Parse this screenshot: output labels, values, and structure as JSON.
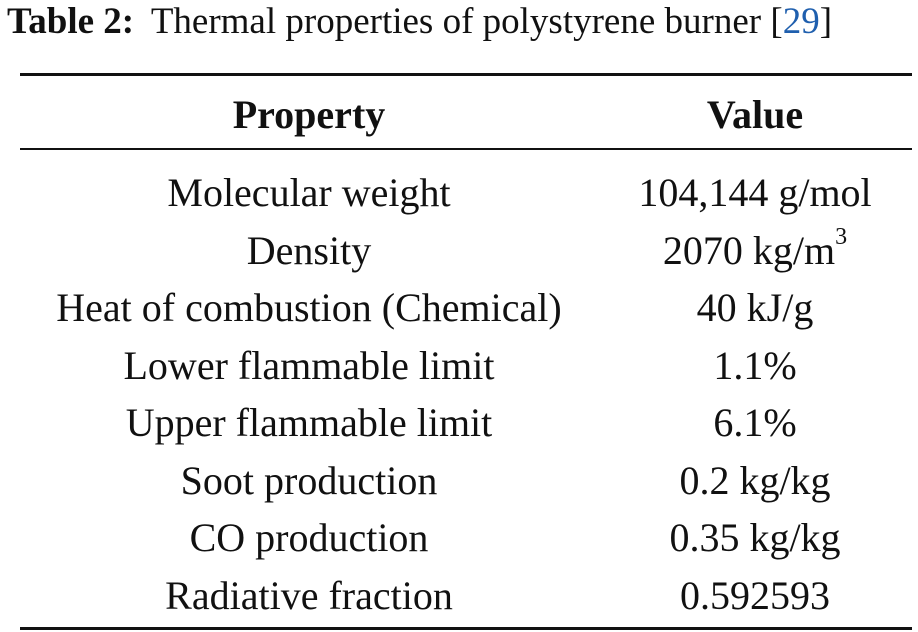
{
  "caption": {
    "label": "Table 2:",
    "text": "Thermal properties of polystyrene burner",
    "citation_open": " [",
    "citation_ref": "29",
    "citation_close": "]"
  },
  "table": {
    "headers": [
      "Property",
      "Value"
    ],
    "rows": [
      {
        "property": "Molecular weight",
        "value": "104,144 g/mol",
        "superscript": ""
      },
      {
        "property": "Density",
        "value": "2070 kg/m",
        "superscript": "3"
      },
      {
        "property": "Heat of combustion (Chemical)",
        "value": "40 kJ/g",
        "superscript": ""
      },
      {
        "property": "Lower flammable limit",
        "value": "1.1%",
        "superscript": ""
      },
      {
        "property": "Upper flammable limit",
        "value": "6.1%",
        "superscript": ""
      },
      {
        "property": "Soot production",
        "value": "0.2 kg/kg",
        "superscript": ""
      },
      {
        "property": "CO production",
        "value": "0.35 kg/kg",
        "superscript": ""
      },
      {
        "property": "Radiative fraction",
        "value": "0.592593",
        "superscript": ""
      }
    ]
  },
  "colors": {
    "text": "#111111",
    "citation_link": "#1f5fae"
  }
}
